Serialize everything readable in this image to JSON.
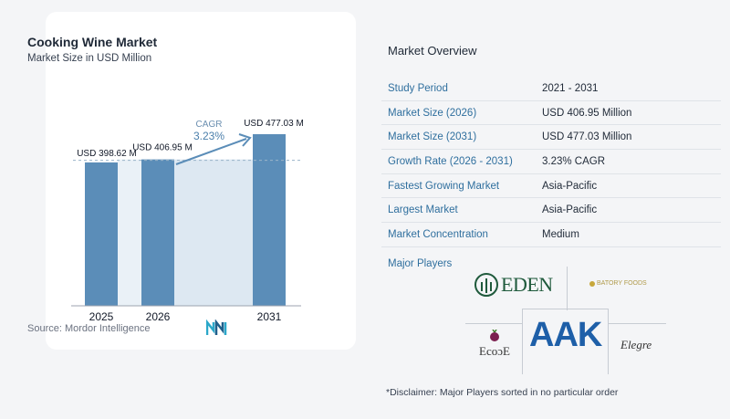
{
  "chart_data": {
    "type": "bar",
    "title": "Cooking Wine Market",
    "subtitle": "Market Size in USD Million",
    "categories": [
      "2025",
      "2026",
      "2031"
    ],
    "values": [
      398.62,
      406.95,
      477.03
    ],
    "value_labels": [
      "USD 398.62 M",
      "USD 406.95 M",
      "USD 477.03 M"
    ],
    "cagr_label": "CAGR",
    "cagr_value": "3.23%",
    "bar_color": "#5b8db8",
    "highlight_color": "#dde8f2",
    "ylim": [
      0,
      500
    ]
  },
  "source": "Source: Mordor Intelligence",
  "overview": {
    "title": "Market Overview",
    "rows": [
      {
        "label": "Study Period",
        "value": "2021 - 2031"
      },
      {
        "label": "Market Size (2026)",
        "value": "USD 406.95 Million"
      },
      {
        "label": "Market Size (2031)",
        "value": "USD 477.03 Million"
      },
      {
        "label": "Growth Rate (2026 - 2031)",
        "value": "3.23% CAGR"
      },
      {
        "label": "Fastest Growing Market",
        "value": "Asia-Pacific"
      },
      {
        "label": "Largest Market",
        "value": "Asia-Pacific"
      },
      {
        "label": "Market Concentration",
        "value": "Medium"
      }
    ]
  },
  "players": {
    "title": "Major Players",
    "eden": "EDEN",
    "batory": "BATORY FOODS",
    "aak": "AAK",
    "ecocl": "EcoɔE",
    "elegre": "Elegre"
  },
  "disclaimer": "*Disclaimer: Major Players sorted in no particular order"
}
